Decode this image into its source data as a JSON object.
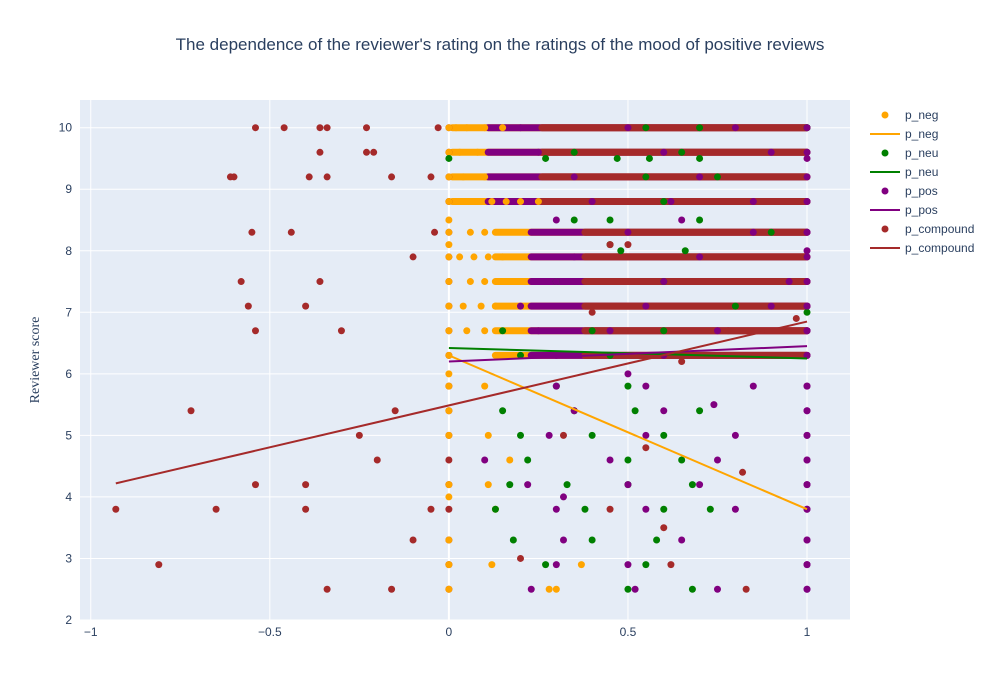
{
  "chart_data": {
    "type": "scatter",
    "title": "The dependence of the reviewer's rating on the ratings of the mood of positive reviews",
    "xlabel": "",
    "ylabel": "Reviewer score",
    "xlim": [
      -1.03,
      1.12
    ],
    "ylim": [
      2.0,
      10.45
    ],
    "x_ticks": [
      -1,
      -0.5,
      0,
      0.5,
      1
    ],
    "x_tick_labels": [
      "−1",
      "−0.5",
      "0",
      "0.5",
      "1"
    ],
    "y_ticks": [
      2,
      3,
      4,
      5,
      6,
      7,
      8,
      9,
      10
    ],
    "y_tick_labels": [
      "2",
      "3",
      "4",
      "5",
      "6",
      "7",
      "8",
      "9",
      "10"
    ],
    "grid": true,
    "legend_position": "right",
    "score_levels": [
      2.5,
      2.9,
      3.3,
      3.8,
      4.2,
      4.6,
      5.0,
      5.4,
      5.8,
      6.3,
      6.7,
      7.1,
      7.5,
      7.9,
      8.3,
      8.8,
      9.2,
      9.6,
      10.0
    ],
    "series": [
      {
        "name": "p_neg",
        "marker_color": "#ffa500",
        "line_color": "#ffa500",
        "points": [
          [
            0,
            10.0
          ],
          [
            0.02,
            10.0
          ],
          [
            0.05,
            10.0
          ],
          [
            0.1,
            10.0
          ],
          [
            0.15,
            10.0
          ],
          [
            0,
            9.6
          ],
          [
            0.03,
            9.6
          ],
          [
            0.08,
            9.6
          ],
          [
            0,
            9.2
          ],
          [
            0.04,
            9.2
          ],
          [
            0.1,
            9.2
          ],
          [
            0,
            8.8
          ],
          [
            0.02,
            8.8
          ],
          [
            0.05,
            8.8
          ],
          [
            0.08,
            8.8
          ],
          [
            0.12,
            8.8
          ],
          [
            0.16,
            8.8
          ],
          [
            0.2,
            8.8
          ],
          [
            0.25,
            8.8
          ],
          [
            0,
            8.5
          ],
          [
            0,
            8.3
          ],
          [
            0.06,
            8.3
          ],
          [
            0.1,
            8.3
          ],
          [
            0,
            8.1
          ],
          [
            0,
            7.9
          ],
          [
            0.03,
            7.9
          ],
          [
            0.07,
            7.9
          ],
          [
            0.11,
            7.9
          ],
          [
            0.15,
            7.9
          ],
          [
            0,
            7.5
          ],
          [
            0.06,
            7.5
          ],
          [
            0.1,
            7.5
          ],
          [
            0,
            7.1
          ],
          [
            0.04,
            7.1
          ],
          [
            0.09,
            7.1
          ],
          [
            0.13,
            7.1
          ],
          [
            0,
            6.7
          ],
          [
            0.05,
            6.7
          ],
          [
            0.1,
            6.7
          ],
          [
            0.0,
            6.3
          ],
          [
            0,
            6.0
          ],
          [
            0,
            5.8
          ],
          [
            0.1,
            5.8
          ],
          [
            0,
            5.4
          ],
          [
            0,
            5.0
          ],
          [
            0.11,
            5.0
          ],
          [
            0.17,
            4.6
          ],
          [
            0,
            4.2
          ],
          [
            0.11,
            4.2
          ],
          [
            0,
            4.0
          ],
          [
            0.13,
            3.8
          ],
          [
            0,
            3.3
          ],
          [
            0,
            2.9
          ],
          [
            0.12,
            2.9
          ],
          [
            0.37,
            2.9
          ],
          [
            0,
            2.5
          ],
          [
            0.28,
            2.5
          ],
          [
            0.3,
            2.5
          ]
        ],
        "line": [
          [
            0,
            6.3
          ],
          [
            1,
            3.8
          ]
        ]
      },
      {
        "name": "p_neu",
        "marker_color": "#008000",
        "line_color": "#008000",
        "points": [
          [
            1,
            10.0
          ],
          [
            0.55,
            10.0
          ],
          [
            0.7,
            10.0
          ],
          [
            0.35,
            9.6
          ],
          [
            0.65,
            9.6
          ],
          [
            0,
            9.5
          ],
          [
            0.27,
            9.5
          ],
          [
            0.47,
            9.5
          ],
          [
            0.56,
            9.5
          ],
          [
            0.7,
            9.5
          ],
          [
            0.55,
            9.2
          ],
          [
            0.75,
            9.2
          ],
          [
            0.6,
            8.8
          ],
          [
            0.35,
            8.5
          ],
          [
            0.45,
            8.5
          ],
          [
            0.7,
            8.5
          ],
          [
            0.9,
            8.3
          ],
          [
            0.45,
            8.1
          ],
          [
            0.48,
            8.0
          ],
          [
            0.66,
            8.0
          ],
          [
            0.3,
            7.5
          ],
          [
            0.6,
            7.5
          ],
          [
            0.8,
            7.1
          ],
          [
            1,
            7.0
          ],
          [
            0.15,
            6.7
          ],
          [
            0.4,
            6.7
          ],
          [
            0.6,
            6.7
          ],
          [
            0.2,
            6.3
          ],
          [
            0.45,
            6.3
          ],
          [
            0.5,
            5.8
          ],
          [
            0.3,
            5.8
          ],
          [
            0.15,
            5.4
          ],
          [
            0.35,
            5.4
          ],
          [
            0.52,
            5.4
          ],
          [
            0.7,
            5.4
          ],
          [
            0.2,
            5.0
          ],
          [
            0.4,
            5.0
          ],
          [
            0.6,
            5.0
          ],
          [
            0.22,
            4.6
          ],
          [
            0.5,
            4.6
          ],
          [
            0.65,
            4.6
          ],
          [
            0.17,
            4.2
          ],
          [
            0.33,
            4.2
          ],
          [
            0.5,
            4.2
          ],
          [
            0.68,
            4.2
          ],
          [
            0.13,
            3.8
          ],
          [
            0.38,
            3.8
          ],
          [
            0.6,
            3.8
          ],
          [
            0.73,
            3.8
          ],
          [
            0.18,
            3.3
          ],
          [
            0.4,
            3.3
          ],
          [
            0.58,
            3.3
          ],
          [
            0.27,
            2.9
          ],
          [
            0.55,
            2.9
          ],
          [
            0.68,
            2.5
          ],
          [
            0.5,
            2.5
          ]
        ],
        "line": [
          [
            0,
            6.42
          ],
          [
            1,
            6.25
          ]
        ]
      },
      {
        "name": "p_pos",
        "marker_color": "#800080",
        "line_color": "#800080",
        "points": [
          [
            0.2,
            10.0
          ],
          [
            0.5,
            10.0
          ],
          [
            0.8,
            10.0
          ],
          [
            1,
            10.0
          ],
          [
            0.25,
            9.6
          ],
          [
            0.6,
            9.6
          ],
          [
            0.9,
            9.6
          ],
          [
            1,
            9.5
          ],
          [
            0.35,
            9.2
          ],
          [
            0.7,
            9.2
          ],
          [
            0.4,
            8.8
          ],
          [
            0.62,
            8.8
          ],
          [
            0.85,
            8.8
          ],
          [
            0.3,
            8.5
          ],
          [
            0.65,
            8.5
          ],
          [
            0.5,
            8.3
          ],
          [
            0.85,
            8.3
          ],
          [
            1,
            8.3
          ],
          [
            1,
            8.0
          ],
          [
            0.35,
            7.9
          ],
          [
            0.7,
            7.9
          ],
          [
            0.3,
            7.5
          ],
          [
            0.6,
            7.5
          ],
          [
            0.95,
            7.5
          ],
          [
            0.2,
            7.1
          ],
          [
            0.55,
            7.1
          ],
          [
            0.9,
            7.1
          ],
          [
            1,
            7.1
          ],
          [
            0.25,
            6.7
          ],
          [
            0.45,
            6.7
          ],
          [
            0.75,
            6.7
          ],
          [
            1,
            6.7
          ],
          [
            0.3,
            6.3
          ],
          [
            0.6,
            6.3
          ],
          [
            1,
            6.3
          ],
          [
            0.5,
            6.0
          ],
          [
            0.3,
            5.8
          ],
          [
            0.55,
            5.8
          ],
          [
            0.85,
            5.8
          ],
          [
            1,
            5.8
          ],
          [
            0.74,
            5.5
          ],
          [
            0.35,
            5.4
          ],
          [
            0.6,
            5.4
          ],
          [
            1,
            5.4
          ],
          [
            0.28,
            5.0
          ],
          [
            0.55,
            5.0
          ],
          [
            0.8,
            5.0
          ],
          [
            1,
            5.0
          ],
          [
            0.1,
            4.6
          ],
          [
            0.45,
            4.6
          ],
          [
            0.75,
            4.6
          ],
          [
            1,
            4.6
          ],
          [
            0.22,
            4.2
          ],
          [
            0.5,
            4.2
          ],
          [
            0.7,
            4.2
          ],
          [
            1,
            4.2
          ],
          [
            0.32,
            4.0
          ],
          [
            0.3,
            3.8
          ],
          [
            0.55,
            3.8
          ],
          [
            0.8,
            3.8
          ],
          [
            1,
            3.8
          ],
          [
            0.32,
            3.3
          ],
          [
            0.65,
            3.3
          ],
          [
            1,
            3.3
          ],
          [
            0.3,
            2.9
          ],
          [
            0.5,
            2.9
          ],
          [
            1,
            2.9
          ],
          [
            0.23,
            2.5
          ],
          [
            0.52,
            2.5
          ],
          [
            0.75,
            2.5
          ],
          [
            1,
            2.5
          ]
        ],
        "line": [
          [
            0,
            6.2
          ],
          [
            1,
            6.45
          ]
        ]
      },
      {
        "name": "p_compound",
        "marker_color": "#a52a2a",
        "line_color": "#a52a2a",
        "points": [
          [
            -0.54,
            10.0
          ],
          [
            -0.46,
            10.0
          ],
          [
            -0.36,
            10.0
          ],
          [
            -0.34,
            10.0
          ],
          [
            -0.23,
            10.0
          ],
          [
            -0.03,
            10.0
          ],
          [
            -0.36,
            9.6
          ],
          [
            -0.23,
            9.6
          ],
          [
            -0.21,
            9.6
          ],
          [
            -0.61,
            9.2
          ],
          [
            -0.6,
            9.2
          ],
          [
            -0.39,
            9.2
          ],
          [
            -0.34,
            9.2
          ],
          [
            -0.16,
            9.2
          ],
          [
            -0.05,
            9.2
          ],
          [
            -0.04,
            8.3
          ],
          [
            -0.55,
            8.3
          ],
          [
            -0.44,
            8.3
          ],
          [
            -0.1,
            7.9
          ],
          [
            -0.58,
            7.5
          ],
          [
            -0.36,
            7.5
          ],
          [
            -0.56,
            7.1
          ],
          [
            -0.4,
            7.1
          ],
          [
            -0.54,
            6.7
          ],
          [
            -0.3,
            6.7
          ],
          [
            -0.72,
            5.4
          ],
          [
            -0.15,
            5.4
          ],
          [
            -0.25,
            5.0
          ],
          [
            -0.2,
            4.6
          ],
          [
            -0.54,
            4.2
          ],
          [
            -0.4,
            4.2
          ],
          [
            -0.93,
            3.8
          ],
          [
            -0.65,
            3.8
          ],
          [
            -0.4,
            3.8
          ],
          [
            -0.05,
            3.8
          ],
          [
            -0.1,
            3.3
          ],
          [
            -0.81,
            2.9
          ],
          [
            -0.34,
            2.5
          ],
          [
            -0.16,
            2.5
          ],
          [
            0.45,
            8.1
          ],
          [
            0.5,
            8.1
          ],
          [
            0.4,
            7.0
          ],
          [
            0.65,
            6.2
          ],
          [
            0.78,
            6.7
          ],
          [
            0.97,
            6.9
          ],
          [
            0.32,
            5.0
          ],
          [
            0.55,
            4.8
          ],
          [
            0.82,
            4.4
          ],
          [
            0.6,
            3.5
          ],
          [
            0.45,
            3.8
          ],
          [
            0.62,
            2.9
          ],
          [
            0.83,
            2.5
          ],
          [
            0.2,
            3.0
          ]
        ],
        "line": [
          [
            -0.93,
            4.22
          ],
          [
            1,
            6.85
          ]
        ]
      }
    ]
  }
}
